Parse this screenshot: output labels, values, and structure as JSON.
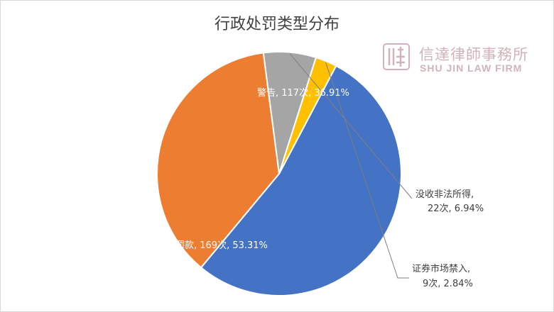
{
  "chart_data": {
    "type": "pie",
    "title": "行政处罚类型分布",
    "slices": [
      {
        "label": "罚款",
        "count": 169,
        "percent": 53.31,
        "color": "#4472C4",
        "text": "罚款, 169次, 53.31%"
      },
      {
        "label": "警告",
        "count": 117,
        "percent": 36.91,
        "color": "#ED7D31",
        "text": "警告, 117次, 36.91%"
      },
      {
        "label": "没收非法所得",
        "count": 22,
        "percent": 6.94,
        "color": "#A5A5A5",
        "text_line1": "没收非法所得,",
        "text_line2": "22次, 6.94%"
      },
      {
        "label": "证券市场禁入",
        "count": 9,
        "percent": 2.84,
        "color": "#FFC000",
        "text_line1": "证券市场禁入,",
        "text_line2": "9次, 2.84%"
      }
    ]
  },
  "watermark": {
    "seal_text": "信達",
    "name": "信達律師事務所",
    "english": "SHU JIN LAW FIRM"
  }
}
